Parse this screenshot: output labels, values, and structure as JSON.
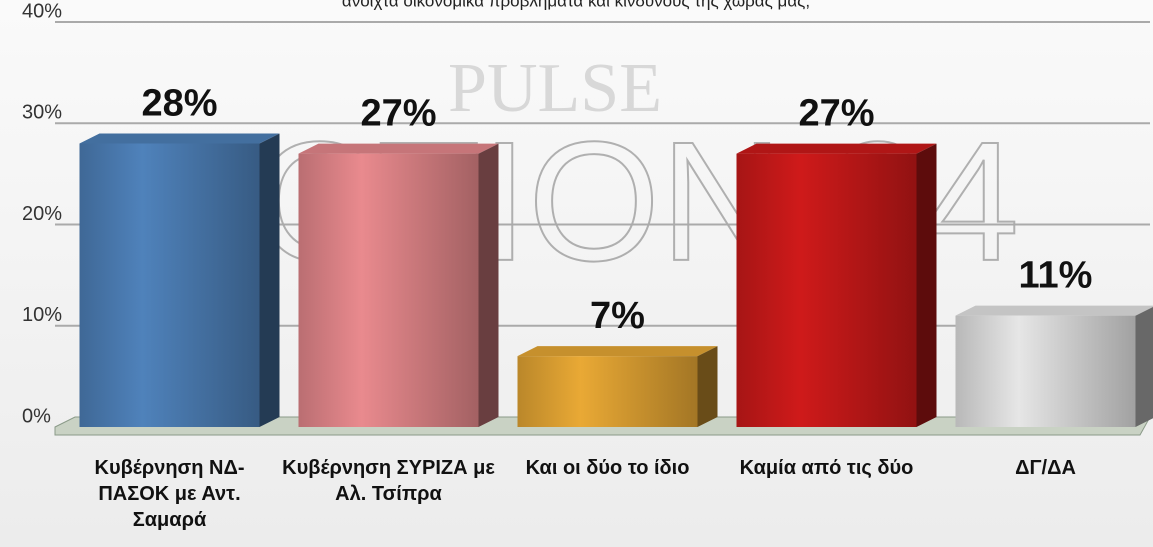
{
  "chart_data": {
    "type": "bar3d",
    "title": "ανοιχτά οικονομικά προβλήματα και κινδύνους της χώρας μας;",
    "watermarks": [
      "PULSE",
      "ACTION 24"
    ],
    "categories": [
      "Κυβέρνηση ΝΔ-ΠΑΣΟΚ με Αντ. Σαμαρά",
      "Κυβέρνηση ΣΥΡΙΖΑ με Αλ. Τσίπρα",
      "Και οι δύο το ίδιο",
      "Καμία από τις δύο",
      "ΔΓ/ΔΑ"
    ],
    "values": [
      28,
      27,
      7,
      27,
      11
    ],
    "value_labels": [
      "28%",
      "27%",
      "7%",
      "27%",
      "11%"
    ],
    "colors": [
      "#4f82bb",
      "#e98a8e",
      "#e9a935",
      "#cf1a1a",
      "#e6e6e6"
    ],
    "ylim": [
      0,
      40
    ],
    "yticks": [
      {
        "value": 0,
        "label": "0%"
      },
      {
        "value": 10,
        "label": "10%"
      },
      {
        "value": 20,
        "label": "20%"
      },
      {
        "value": 30,
        "label": "30%"
      },
      {
        "value": 40,
        "label": "40%"
      }
    ],
    "grid": true
  }
}
